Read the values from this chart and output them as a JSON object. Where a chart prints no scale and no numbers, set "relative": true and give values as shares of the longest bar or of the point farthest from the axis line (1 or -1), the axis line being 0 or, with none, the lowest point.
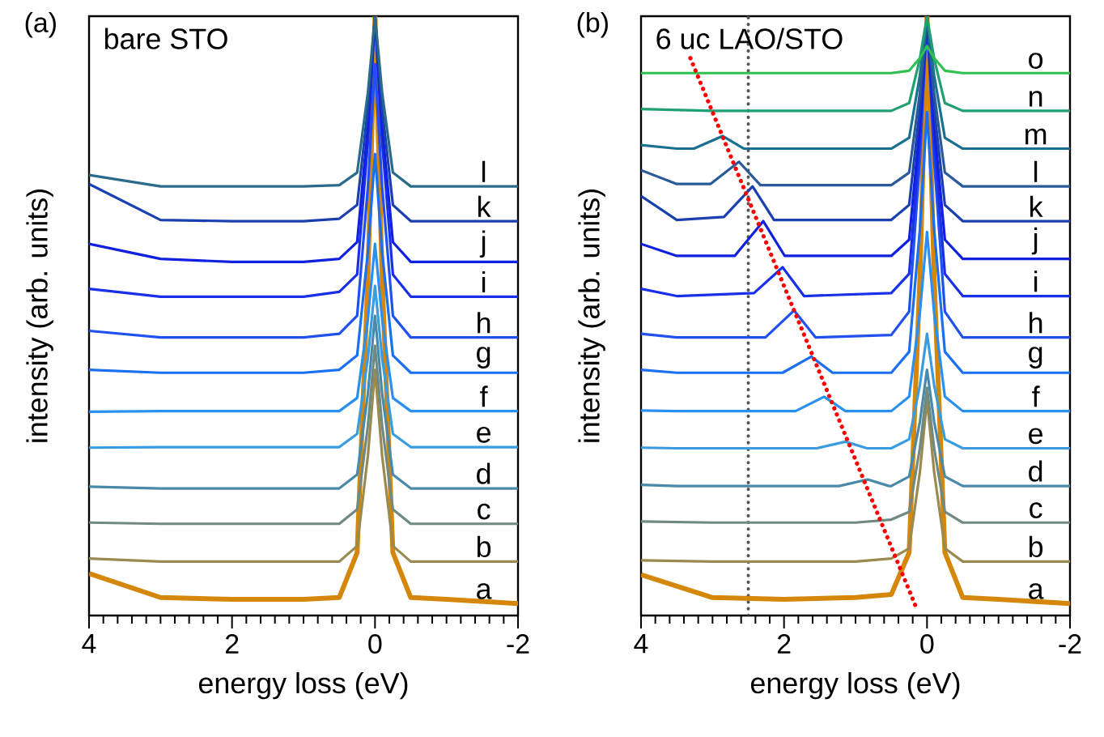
{
  "chart_data": [
    {
      "type": "line",
      "title": "(a)",
      "xlabel": "energy loss (eV)",
      "ylabel": "intensity (arb. units)",
      "annotations": [
        "bare STO"
      ],
      "relative": true,
      "xlim": [
        4,
        -2
      ],
      "xticks": [
        4,
        2,
        0,
        -2
      ],
      "x": [
        4,
        3,
        2,
        1,
        0.5,
        0.25,
        0.1,
        0,
        -0.1,
        -0.25,
        -0.5,
        -1,
        -2
      ],
      "series": [
        {
          "name": "a",
          "color": "#d4870a",
          "values": [
            0.07,
            0.03,
            0.027,
            0.027,
            0.03,
            0.105,
            0.562,
            1,
            0.562,
            0.105,
            0.03,
            0.027,
            0.02
          ]
        },
        {
          "name": "b",
          "color": "#9a8a50",
          "values": [
            0.095,
            0.09,
            0.09,
            0.09,
            0.09,
            0.116,
            0.266,
            0.41,
            0.266,
            0.116,
            0.09,
            0.09,
            0.09
          ]
        },
        {
          "name": "c",
          "color": "#708a80",
          "values": [
            0.155,
            0.153,
            0.153,
            0.153,
            0.153,
            0.177,
            0.316,
            0.45,
            0.316,
            0.177,
            0.153,
            0.153,
            0.153
          ]
        },
        {
          "name": "d",
          "color": "#4a8aa8",
          "values": [
            0.215,
            0.212,
            0.212,
            0.212,
            0.212,
            0.235,
            0.37,
            0.5,
            0.37,
            0.235,
            0.212,
            0.212,
            0.212
          ]
        },
        {
          "name": "e",
          "color": "#3a9ce0",
          "values": [
            0.28,
            0.281,
            0.281,
            0.281,
            0.281,
            0.303,
            0.429,
            0.55,
            0.429,
            0.303,
            0.281,
            0.281,
            0.281
          ]
        },
        {
          "name": "f",
          "color": "#2a90f0",
          "values": [
            0.34,
            0.341,
            0.341,
            0.341,
            0.341,
            0.363,
            0.494,
            0.62,
            0.494,
            0.363,
            0.341,
            0.341,
            0.341
          ]
        },
        {
          "name": "g",
          "color": "#1a70f0",
          "values": [
            0.41,
            0.405,
            0.405,
            0.405,
            0.41,
            0.434,
            0.606,
            0.77,
            0.606,
            0.434,
            0.405,
            0.405,
            0.405
          ]
        },
        {
          "name": "h",
          "color": "#2050f0",
          "values": [
            0.475,
            0.464,
            0.464,
            0.464,
            0.47,
            0.5,
            0.715,
            0.92,
            0.715,
            0.5,
            0.464,
            0.464,
            0.464
          ]
        },
        {
          "name": "i",
          "color": "#1a30e8",
          "values": [
            0.545,
            0.532,
            0.532,
            0.532,
            0.54,
            0.569,
            0.789,
            1,
            0.789,
            0.569,
            0.532,
            0.532,
            0.532
          ]
        },
        {
          "name": "j",
          "color": "#1020e0",
          "values": [
            0.62,
            0.595,
            0.59,
            0.59,
            0.595,
            0.623,
            0.816,
            1,
            0.816,
            0.623,
            0.59,
            0.59,
            0.59
          ]
        },
        {
          "name": "k",
          "color": "#1a40b0",
          "values": [
            0.72,
            0.66,
            0.658,
            0.658,
            0.662,
            0.685,
            0.846,
            1,
            0.846,
            0.685,
            0.658,
            0.658,
            0.658
          ]
        },
        {
          "name": "l",
          "color": "#2a6a8a",
          "values": [
            0.735,
            0.716,
            0.716,
            0.716,
            0.718,
            0.739,
            0.872,
            1,
            0.872,
            0.739,
            0.716,
            0.716,
            0.716
          ]
        }
      ]
    },
    {
      "type": "line",
      "title": "(b)",
      "xlabel": "energy loss (eV)",
      "ylabel": "intensity (arb. units)",
      "annotations": [
        "6 uc LAO/STO"
      ],
      "relative": true,
      "xlim": [
        4,
        -2
      ],
      "xticks": [
        4,
        2,
        0,
        -2
      ],
      "x": [
        4,
        3,
        2,
        1,
        0.5,
        0.25,
        0.1,
        0,
        -0.1,
        -0.25,
        -0.5,
        -1,
        -2
      ],
      "ref_lines": [
        {
          "axis": "x",
          "value": 2.5,
          "color": "#555555",
          "line_style": "dotted"
        }
      ],
      "series": [
        {
          "name": "a",
          "color": "#d4870a",
          "values": [
            0.068,
            0.03,
            0.027,
            0.03,
            0.035,
            0.105,
            0.562,
            1,
            0.562,
            0.105,
            0.03,
            0.027,
            0.02
          ]
        },
        {
          "name": "b",
          "color": "#9a8a50",
          "values": [
            0.092,
            0.09,
            0.09,
            0.09,
            0.095,
            0.112,
            0.239,
            0.36,
            0.239,
            0.112,
            0.09,
            0.09,
            0.09
          ]
        },
        {
          "name": "c",
          "color": "#708a80",
          "values": [
            0.157,
            0.155,
            0.155,
            0.155,
            0.16,
            0.173,
            0.279,
            0.38,
            0.279,
            0.173,
            0.155,
            0.155,
            0.155
          ]
        },
        {
          "name": "d",
          "color": "#4a8aa8",
          "x": [
            4,
            3.5,
            1.23,
            0.83,
            0.53,
            0.5,
            0.25,
            0.1,
            0,
            -0.1,
            -0.25,
            -0.5,
            -1,
            -2
          ],
          "values": [
            0.218,
            0.216,
            0.216,
            0.227,
            0.216,
            0.216,
            0.232,
            0.323,
            0.41,
            0.323,
            0.232,
            0.216,
            0.216,
            0.216
          ]
        },
        {
          "name": "e",
          "color": "#3a9ce0",
          "x": [
            4,
            3.5,
            1.54,
            1.14,
            0.84,
            0.5,
            0.25,
            0.1,
            0,
            -0.1,
            -0.25,
            -0.5,
            -1,
            -2
          ],
          "values": [
            0.28,
            0.279,
            0.279,
            0.29,
            0.279,
            0.279,
            0.294,
            0.384,
            0.47,
            0.384,
            0.294,
            0.279,
            0.279,
            0.279
          ]
        },
        {
          "name": "f",
          "color": "#2a90f0",
          "x": [
            4,
            3.5,
            1.84,
            1.44,
            1.14,
            0.5,
            0.25,
            0.1,
            0,
            -0.1,
            -0.25,
            -0.5,
            -1,
            -2
          ],
          "values": [
            0.342,
            0.341,
            0.341,
            0.365,
            0.341,
            0.341,
            0.365,
            0.505,
            0.64,
            0.505,
            0.365,
            0.341,
            0.341,
            0.341
          ]
        },
        {
          "name": "g",
          "color": "#1a70f0",
          "x": [
            4,
            3.5,
            2.02,
            1.62,
            1.32,
            0.5,
            0.25,
            0.1,
            0,
            -0.1,
            -0.25,
            -0.5,
            -1,
            -2
          ],
          "values": [
            0.41,
            0.405,
            0.405,
            0.432,
            0.405,
            0.405,
            0.44,
            0.644,
            0.84,
            0.644,
            0.44,
            0.405,
            0.405,
            0.405
          ]
        },
        {
          "name": "h",
          "color": "#2050f0",
          "x": [
            4,
            3.5,
            2.26,
            1.86,
            1.56,
            0.5,
            0.25,
            0.1,
            0,
            -0.1,
            -0.25,
            -0.5,
            -1,
            -2
          ],
          "values": [
            0.47,
            0.464,
            0.464,
            0.509,
            0.464,
            0.468,
            0.507,
            0.759,
            1,
            0.759,
            0.507,
            0.464,
            0.464,
            0.464
          ]
        },
        {
          "name": "i",
          "color": "#1a30e8",
          "x": [
            4,
            3.5,
            2.42,
            2.02,
            1.72,
            0.5,
            0.25,
            0.1,
            0,
            -0.1,
            -0.25,
            -0.5,
            -1,
            -2
          ],
          "values": [
            0.545,
            0.533,
            0.538,
            0.581,
            0.533,
            0.538,
            0.57,
            0.79,
            1,
            0.79,
            0.57,
            0.533,
            0.533,
            0.533
          ]
        },
        {
          "name": "j",
          "color": "#1020e0",
          "x": [
            4,
            3.5,
            2.69,
            2.29,
            1.99,
            0.5,
            0.25,
            0.1,
            0,
            -0.1,
            -0.25,
            -0.5,
            -1,
            -2
          ],
          "values": [
            0.62,
            0.6,
            0.6,
            0.658,
            0.6,
            0.6,
            0.627,
            0.818,
            1,
            0.818,
            0.627,
            0.595,
            0.595,
            0.595
          ]
        },
        {
          "name": "k",
          "color": "#1a40b0",
          "x": [
            4,
            3.5,
            2.84,
            2.44,
            2.14,
            0.5,
            0.25,
            0.1,
            0,
            -0.1,
            -0.25,
            -0.5,
            -1,
            -2
          ],
          "values": [
            0.7,
            0.66,
            0.665,
            0.716,
            0.66,
            0.66,
            0.685,
            0.846,
            1,
            0.846,
            0.685,
            0.658,
            0.658,
            0.658
          ]
        },
        {
          "name": "l",
          "color": "#2a5a9a",
          "x": [
            4,
            3.5,
            3.03,
            2.63,
            2.33,
            0.5,
            0.25,
            0.1,
            0,
            -0.1,
            -0.25,
            -0.5,
            -1,
            -2
          ],
          "values": [
            0.743,
            0.72,
            0.72,
            0.757,
            0.718,
            0.718,
            0.739,
            0.872,
            1,
            0.872,
            0.739,
            0.716,
            0.716,
            0.716
          ]
        },
        {
          "name": "m",
          "color": "#1a7090",
          "x": [
            4,
            3.5,
            3.26,
            2.86,
            2.56,
            0.5,
            0.25,
            0.1,
            0,
            -0.1,
            -0.25,
            -0.5,
            -1,
            -2
          ],
          "values": [
            0.785,
            0.779,
            0.779,
            0.8,
            0.779,
            0.779,
            0.797,
            0.901,
            1,
            0.901,
            0.797,
            0.779,
            0.779,
            0.779
          ]
        },
        {
          "name": "n",
          "color": "#20a070",
          "values": [
            0.845,
            0.842,
            0.842,
            0.842,
            0.842,
            0.855,
            0.929,
            1,
            0.929,
            0.855,
            0.842,
            0.842,
            0.842
          ]
        },
        {
          "name": "o",
          "color": "#30c050",
          "values": [
            0.905,
            0.905,
            0.905,
            0.905,
            0.905,
            0.909,
            0.93,
            0.95,
            0.93,
            0.909,
            0.905,
            0.905,
            0.905
          ]
        },
        {
          "type": "line",
          "color": "#ff0000",
          "line_style": "dotted",
          "x": [
            3.31,
            0.14
          ],
          "values": [
            0.93,
            0.01
          ]
        }
      ]
    }
  ]
}
